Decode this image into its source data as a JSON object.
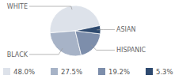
{
  "chart_data": {
    "type": "pie",
    "categories": [
      "WHITE",
      "BLACK",
      "HISPANIC",
      "ASIAN"
    ],
    "values": [
      48.0,
      27.5,
      19.2,
      5.3
    ],
    "value_labels": [
      "48.0%",
      "27.5%",
      "19.2%",
      "5.3%"
    ],
    "colors": [
      "#dde2ea",
      "#a7b3c7",
      "#7d8eab",
      "#2e4a6f"
    ]
  }
}
